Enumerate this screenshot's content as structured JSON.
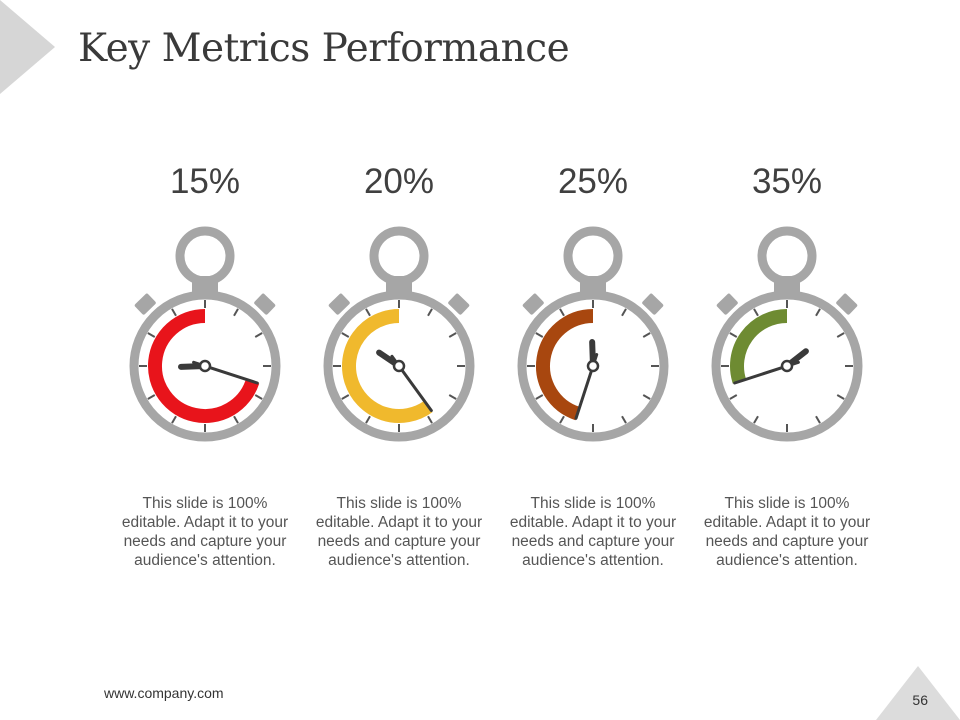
{
  "title": "Key Metrics Performance",
  "metrics": [
    {
      "label": "15%",
      "percent": 15,
      "arc_fraction": 0.7,
      "color": "#e8141b",
      "text": "This slide is 100% editable. Adapt it to your needs and capture your audience's attention."
    },
    {
      "label": "20%",
      "percent": 20,
      "arc_fraction": 0.6,
      "color": "#f0b92d",
      "text": "This slide is 100% editable. Adapt it to your needs and capture your audience's attention."
    },
    {
      "label": "25%",
      "percent": 25,
      "arc_fraction": 0.45,
      "color": "#a8470f",
      "text": "This slide is 100% editable. Adapt it to your needs and capture your audience's attention."
    },
    {
      "label": "35%",
      "percent": 35,
      "arc_fraction": 0.3,
      "color": "#6e8b32",
      "text": "This slide is 100% editable. Adapt it to your needs and capture your audience's attention."
    }
  ],
  "footer": {
    "url": "www.company.com",
    "page_number": "56"
  },
  "colors": {
    "frame": "#a6a6a6",
    "hand": "#3a3a3a"
  }
}
